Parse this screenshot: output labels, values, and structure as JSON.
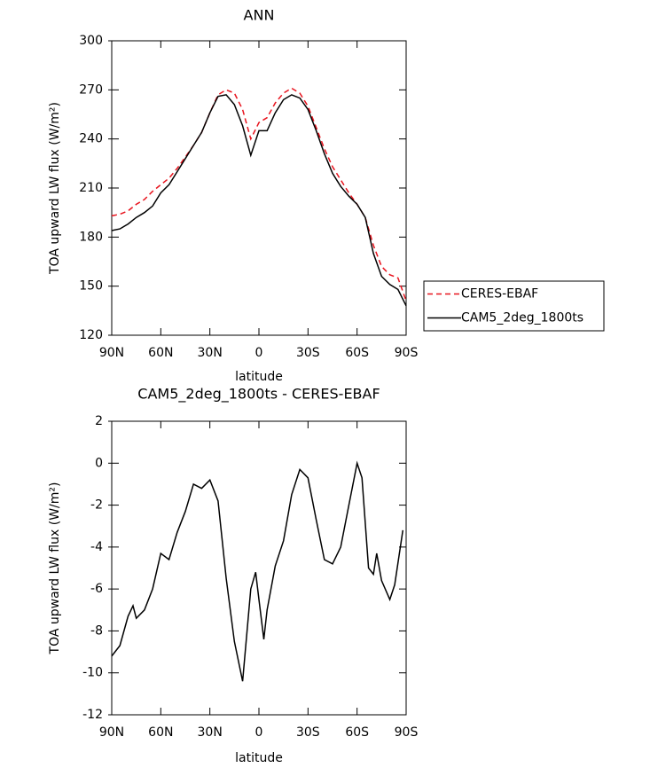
{
  "chart_data": [
    {
      "type": "line",
      "title": "ANN",
      "x_label": "latitude",
      "y_label": "TOA upward LW flux (W/m²)",
      "x": [
        90,
        85,
        80,
        75,
        70,
        65,
        60,
        55,
        50,
        45,
        40,
        35,
        30,
        25,
        20,
        15,
        10,
        5,
        0,
        -5,
        -10,
        -15,
        -20,
        -25,
        -30,
        -35,
        -40,
        -45,
        -50,
        -55,
        -60,
        -65,
        -70,
        -75,
        -80,
        -85,
        -90
      ],
      "series": [
        {
          "name": "CERES-EBAF",
          "color": "#e8141e",
          "line_style": "dashed",
          "values": [
            193,
            194,
            196,
            200,
            203,
            208,
            212,
            216,
            222,
            229,
            236,
            244,
            256,
            267,
            270,
            268,
            258,
            240,
            250,
            253,
            262,
            268,
            271,
            268,
            260,
            247,
            234,
            223,
            215,
            207,
            200,
            192,
            175,
            162,
            157,
            155,
            141
          ]
        },
        {
          "name": "CAM5_2deg_1800ts",
          "color": "#000000",
          "line_style": "solid",
          "values": [
            184,
            185,
            188,
            192,
            195,
            199,
            207,
            212,
            220,
            228,
            236,
            244,
            256,
            266,
            267,
            261,
            248,
            230,
            245,
            245,
            256,
            264,
            267,
            265,
            258,
            245,
            231,
            219,
            211,
            205,
            200,
            192,
            170,
            156,
            151,
            148,
            138
          ]
        }
      ],
      "xlim": [
        90,
        -90
      ],
      "xticks": [
        {
          "value": 90,
          "label": "90N"
        },
        {
          "value": 60,
          "label": "60N"
        },
        {
          "value": 30,
          "label": "30N"
        },
        0,
        {
          "value": -30,
          "label": "30S"
        },
        {
          "value": -60,
          "label": "60S"
        },
        {
          "value": -90,
          "label": "90S"
        }
      ],
      "ylim": [
        120,
        300
      ],
      "yticks": [
        120,
        150,
        180,
        210,
        240,
        270,
        300
      ],
      "legend": "right"
    },
    {
      "type": "line",
      "title": "CAM5_2deg_1800ts - CERES-EBAF",
      "x_label": "latitude",
      "y_label": "TOA upward LW flux (W/m²)",
      "x": [
        90,
        85,
        80,
        77,
        75,
        70,
        65,
        60,
        55,
        50,
        45,
        40,
        35,
        30,
        25,
        20,
        15,
        10,
        5,
        2,
        0,
        -3,
        -5,
        -10,
        -15,
        -20,
        -25,
        -30,
        -35,
        -40,
        -45,
        -50,
        -55,
        -60,
        -63,
        -67,
        -70,
        -72,
        -75,
        -80,
        -83,
        -88
      ],
      "series": [
        {
          "color": "#000000",
          "line_style": "solid",
          "values": [
            -9.2,
            -8.7,
            -7.3,
            -6.8,
            -7.4,
            -7.0,
            -6.0,
            -4.3,
            -4.6,
            -3.3,
            -2.3,
            -1.0,
            -1.2,
            -0.8,
            -1.8,
            -5.5,
            -8.5,
            -10.4,
            -6.0,
            -5.2,
            -6.5,
            -8.4,
            -7.0,
            -4.9,
            -3.7,
            -1.5,
            -0.3,
            -0.7,
            -2.7,
            -4.6,
            -4.8,
            -4.0,
            -2.0,
            0,
            -0.7,
            -5.0,
            -5.3,
            -4.3,
            -5.6,
            -6.5,
            -5.8,
            -3.2
          ]
        }
      ],
      "xlim": [
        90,
        -90
      ],
      "xticks": [
        {
          "value": 90,
          "label": "90N"
        },
        {
          "value": 60,
          "label": "60N"
        },
        {
          "value": 30,
          "label": "30N"
        },
        0,
        {
          "value": -30,
          "label": "30S"
        },
        {
          "value": -60,
          "label": "60S"
        },
        {
          "value": -90,
          "label": "90S"
        }
      ],
      "ylim": [
        -12,
        2
      ],
      "yticks": [
        -12,
        -10,
        -8,
        -6,
        -4,
        -2,
        0,
        2
      ]
    }
  ]
}
